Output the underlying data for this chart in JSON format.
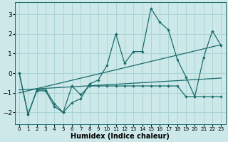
{
  "xlabel": "Humidex (Indice chaleur)",
  "x": [
    0,
    1,
    2,
    3,
    4,
    5,
    6,
    7,
    8,
    9,
    10,
    11,
    12,
    13,
    14,
    15,
    16,
    17,
    18,
    19,
    20,
    21,
    22,
    23
  ],
  "line1": [
    0.0,
    -2.1,
    -0.9,
    -0.9,
    -1.7,
    -2.0,
    -1.5,
    -1.3,
    -0.55,
    -0.35,
    0.4,
    2.0,
    0.5,
    1.1,
    1.1,
    3.3,
    2.6,
    2.2,
    0.7,
    -0.2,
    -1.2,
    0.8,
    2.15,
    1.4
  ],
  "line2": [
    0.0,
    -2.1,
    -0.85,
    -0.85,
    -1.55,
    -2.0,
    -0.65,
    -1.1,
    -0.65,
    -0.65,
    -0.65,
    -0.65,
    -0.65,
    -0.65,
    -0.65,
    -0.65,
    -0.65,
    -0.65,
    -0.65,
    -1.2,
    -1.2,
    -1.2,
    -1.2,
    -1.2
  ],
  "line3_x": [
    0,
    23
  ],
  "line3_y": [
    -1.0,
    1.45
  ],
  "line4_x": [
    0,
    23
  ],
  "line4_y": [
    -0.85,
    -0.25
  ],
  "bg_color": "#cce8e8",
  "grid_color": "#aad4d4",
  "line_color": "#1a6b6b",
  "xlim": [
    -0.5,
    23.5
  ],
  "ylim": [
    -2.6,
    3.6
  ],
  "yticks": [
    -2,
    -1,
    0,
    1,
    2,
    3
  ],
  "xticks": [
    0,
    1,
    2,
    3,
    4,
    5,
    6,
    7,
    8,
    9,
    10,
    11,
    12,
    13,
    14,
    15,
    16,
    17,
    18,
    19,
    20,
    21,
    22,
    23
  ],
  "xticklabels": [
    "0",
    "1",
    "2",
    "3",
    "4",
    "5",
    "6",
    "7",
    "8",
    "9",
    "10",
    "11",
    "12",
    "13",
    "14",
    "15",
    "16",
    "17",
    "18",
    "19",
    "20",
    "21",
    "22",
    "23"
  ]
}
